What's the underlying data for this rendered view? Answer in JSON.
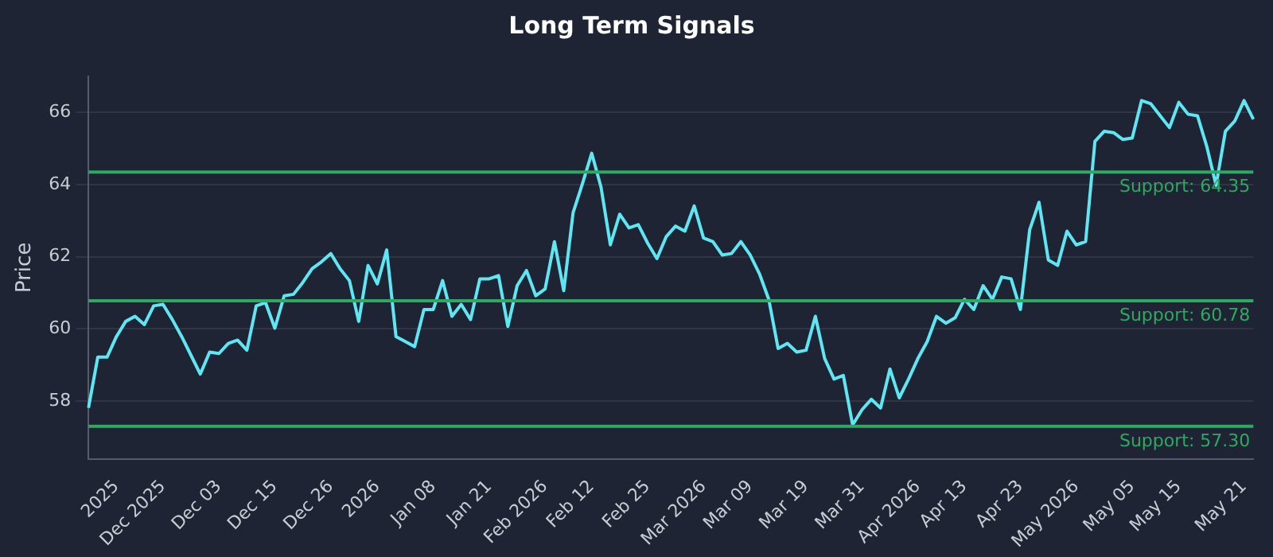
{
  "chart_data": {
    "type": "line",
    "title": "Long Term Signals",
    "ylabel": "Price",
    "categories": [
      null,
      null,
      null,
      "2025",
      null,
      null,
      null,
      null,
      "Dec 2025",
      null,
      null,
      null,
      null,
      null,
      "Dec 03",
      null,
      null,
      null,
      null,
      null,
      "Dec 15",
      null,
      null,
      null,
      null,
      null,
      "Dec 26",
      null,
      null,
      null,
      null,
      "2026",
      null,
      null,
      null,
      null,
      null,
      "Jan 08",
      null,
      null,
      null,
      null,
      null,
      "Jan 21",
      null,
      null,
      null,
      null,
      null,
      "Feb 2026",
      null,
      null,
      null,
      null,
      "Feb 12",
      null,
      null,
      null,
      null,
      null,
      "Feb 25",
      null,
      null,
      null,
      null,
      null,
      "Mar 2026",
      null,
      null,
      null,
      null,
      "Mar 09",
      null,
      null,
      null,
      null,
      null,
      "Mar 19",
      null,
      null,
      null,
      null,
      null,
      "Mar 31",
      null,
      null,
      null,
      null,
      null,
      "Apr 2026",
      null,
      null,
      null,
      null,
      "Apr 13",
      null,
      null,
      null,
      null,
      null,
      "Apr 23",
      null,
      null,
      null,
      null,
      null,
      "May 2026",
      null,
      null,
      null,
      null,
      null,
      "May 05",
      null,
      null,
      null,
      null,
      "May 15",
      null,
      null,
      null,
      null,
      null,
      null,
      "May 21",
      null
    ],
    "series": [
      {
        "color": "#5ee6f2",
        "values": [
          57.81,
          59.22,
          59.22,
          59.79,
          60.21,
          60.35,
          60.12,
          60.64,
          60.68,
          60.26,
          59.79,
          59.27,
          58.75,
          59.36,
          59.32,
          59.6,
          59.69,
          59.41,
          60.64,
          60.73,
          60.02,
          60.92,
          60.96,
          61.29,
          61.67,
          61.86,
          62.09,
          61.67,
          61.34,
          60.21,
          61.76,
          61.25,
          62.19,
          59.79,
          59.65,
          59.51,
          60.54,
          60.54,
          61.34,
          60.35,
          60.68,
          60.26,
          61.39,
          61.39,
          61.48,
          60.07,
          61.2,
          61.62,
          60.92,
          61.11,
          62.42,
          61.06,
          63.22,
          64.02,
          64.87,
          63.93,
          62.33,
          63.18,
          62.8,
          62.89,
          62.38,
          61.95,
          62.56,
          62.85,
          62.71,
          63.41,
          62.52,
          62.42,
          62.05,
          62.09,
          62.42,
          62.05,
          61.53,
          60.82,
          59.46,
          59.6,
          59.36,
          59.41,
          60.35,
          59.18,
          58.61,
          58.71,
          57.34,
          57.76,
          58.05,
          57.81,
          58.89,
          58.09,
          58.61,
          59.18,
          59.65,
          60.35,
          60.16,
          60.31,
          60.82,
          60.54,
          61.2,
          60.82,
          61.44,
          61.39,
          60.54,
          62.75,
          63.51,
          61.91,
          61.76,
          62.71,
          62.33,
          62.42,
          65.2,
          65.48,
          65.44,
          65.25,
          65.29,
          66.33,
          66.24,
          65.91,
          65.58,
          66.28,
          65.95,
          65.91,
          65.06,
          63.98,
          65.48,
          65.76,
          66.33,
          65.81
        ]
      }
    ],
    "ylim": [
      56.4,
      67
    ],
    "yticks": [
      58,
      60,
      62,
      64,
      66
    ],
    "grid": "y",
    "legend": false,
    "marker": "none",
    "line_style": "solid",
    "ref_lines": [
      {
        "axis": "y",
        "value": 64.35,
        "label": "Support: 64.35",
        "color": "#2fa862"
      },
      {
        "axis": "y",
        "value": 60.78,
        "label": "Support: 60.78",
        "color": "#2fa862"
      },
      {
        "axis": "y",
        "value": 57.3,
        "label": "Support: 57.30",
        "color": "#2fa862"
      }
    ]
  }
}
